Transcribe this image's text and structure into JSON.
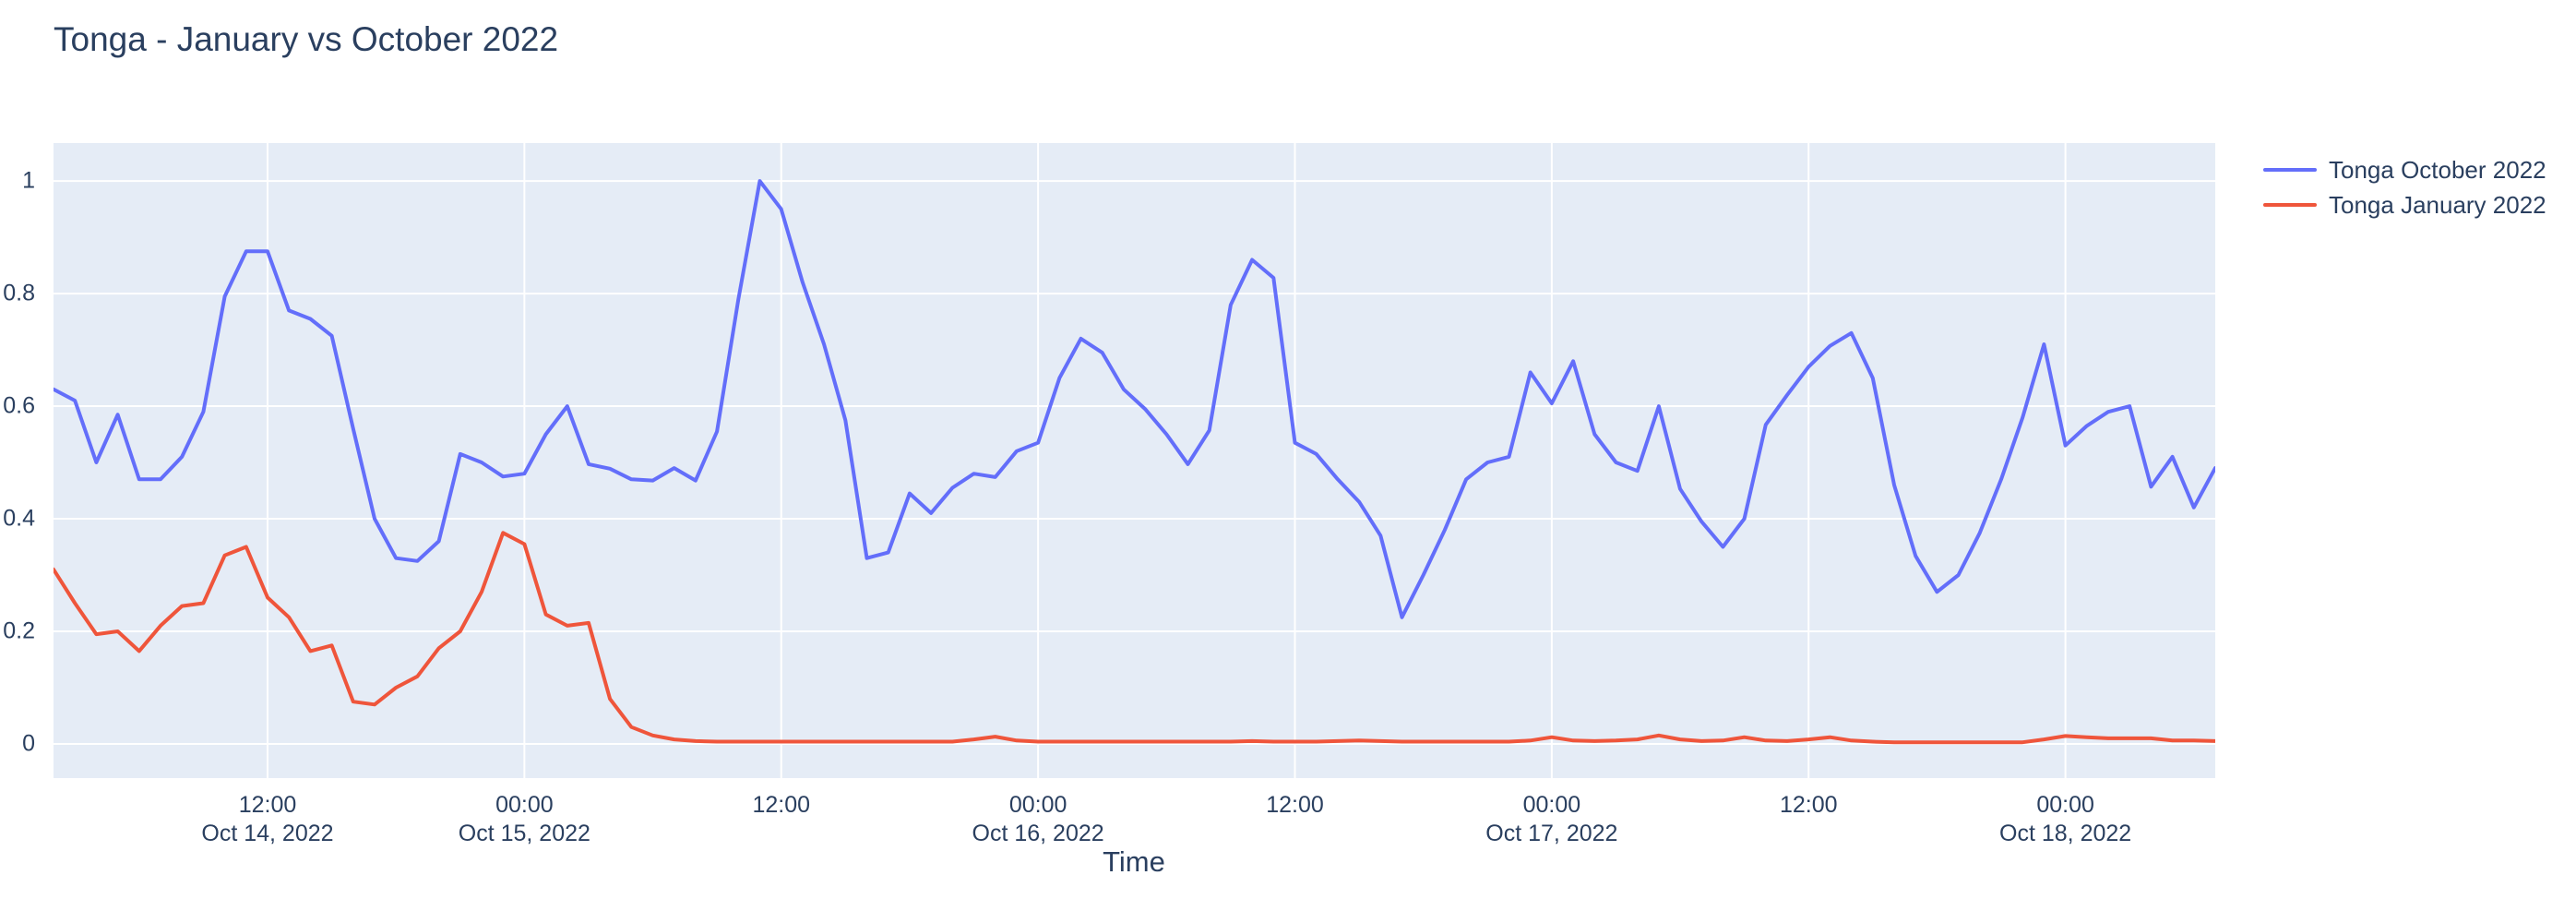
{
  "title": "Tonga - January vs October 2022",
  "xaxis": {
    "title": "Time",
    "ticks": [
      {
        "time": "12:00",
        "date": "Oct 14, 2022",
        "offset_h": 10
      },
      {
        "time": "00:00",
        "date": "Oct 15, 2022",
        "offset_h": 22
      },
      {
        "time": "12:00",
        "date": "",
        "offset_h": 34
      },
      {
        "time": "00:00",
        "date": "Oct 16, 2022",
        "offset_h": 46
      },
      {
        "time": "12:00",
        "date": "",
        "offset_h": 58
      },
      {
        "time": "00:00",
        "date": "Oct 17, 2022",
        "offset_h": 70
      },
      {
        "time": "12:00",
        "date": "",
        "offset_h": 82
      },
      {
        "time": "00:00",
        "date": "Oct 18, 2022",
        "offset_h": 94
      }
    ],
    "span_hours": 101
  },
  "yaxis": {
    "ticks": [
      {
        "label": "0",
        "value": 0
      },
      {
        "label": "0.2",
        "value": 0.2
      },
      {
        "label": "0.4",
        "value": 0.4
      },
      {
        "label": "0.6",
        "value": 0.6
      },
      {
        "label": "0.8",
        "value": 0.8
      },
      {
        "label": "1",
        "value": 1
      }
    ],
    "range": [
      -0.0607,
      1.0674
    ]
  },
  "legend": {
    "items": [
      {
        "label": "Tonga October 2022",
        "color": "#636efa"
      },
      {
        "label": "Tonga January 2022",
        "color": "#ef553b"
      }
    ]
  },
  "colors": {
    "plot_bg": "#e5ecf6",
    "grid": "#ffffff",
    "font": "#2a3f5f",
    "october_series": "#636efa",
    "january_series": "#ef553b"
  },
  "chart_data": {
    "type": "line",
    "title": "Tonga - January vs October 2022",
    "xlabel": "Time",
    "ylabel": "",
    "x_start": "2022-10-14 02:00",
    "x_step_hours": 1,
    "x_end": "2022-10-18 07:00",
    "ylim": [
      -0.0607,
      1.0674
    ],
    "grid": true,
    "legend_position": "right",
    "series": [
      {
        "name": "Tonga October 2022",
        "color": "#636efa",
        "values": [
          0.63,
          0.61,
          0.5,
          0.585,
          0.47,
          0.47,
          0.51,
          0.59,
          0.795,
          0.875,
          0.875,
          0.77,
          0.755,
          0.725,
          0.56,
          0.4,
          0.33,
          0.325,
          0.36,
          0.515,
          0.5,
          0.475,
          0.48,
          0.55,
          0.6,
          0.497,
          0.489,
          0.47,
          0.468,
          0.49,
          0.468,
          0.555,
          0.79,
          1.0,
          0.95,
          0.82,
          0.71,
          0.575,
          0.33,
          0.34,
          0.445,
          0.41,
          0.455,
          0.48,
          0.474,
          0.52,
          0.535,
          0.65,
          0.72,
          0.695,
          0.63,
          0.595,
          0.55,
          0.497,
          0.557,
          0.78,
          0.86,
          0.828,
          0.535,
          0.515,
          0.47,
          0.43,
          0.37,
          0.225,
          0.3,
          0.38,
          0.47,
          0.5,
          0.51,
          0.66,
          0.605,
          0.68,
          0.55,
          0.5,
          0.485,
          0.6,
          0.453,
          0.395,
          0.35,
          0.4,
          0.567,
          0.62,
          0.67,
          0.707,
          0.73,
          0.65,
          0.46,
          0.334,
          0.27,
          0.3,
          0.375,
          0.47,
          0.58,
          0.71,
          0.53,
          0.565,
          0.59,
          0.6,
          0.457,
          0.51,
          0.42,
          0.49
        ]
      },
      {
        "name": "Tonga January 2022",
        "color": "#ef553b",
        "values": [
          0.31,
          0.25,
          0.195,
          0.2,
          0.165,
          0.21,
          0.245,
          0.25,
          0.335,
          0.35,
          0.26,
          0.225,
          0.165,
          0.175,
          0.075,
          0.07,
          0.1,
          0.12,
          0.17,
          0.2,
          0.27,
          0.375,
          0.355,
          0.23,
          0.21,
          0.215,
          0.08,
          0.03,
          0.015,
          0.008,
          0.005,
          0.004,
          0.004,
          0.004,
          0.004,
          0.004,
          0.004,
          0.004,
          0.004,
          0.004,
          0.004,
          0.004,
          0.004,
          0.008,
          0.013,
          0.006,
          0.004,
          0.004,
          0.004,
          0.004,
          0.004,
          0.004,
          0.004,
          0.004,
          0.004,
          0.004,
          0.005,
          0.004,
          0.004,
          0.004,
          0.005,
          0.006,
          0.005,
          0.004,
          0.004,
          0.004,
          0.004,
          0.004,
          0.004,
          0.006,
          0.012,
          0.006,
          0.005,
          0.006,
          0.008,
          0.015,
          0.008,
          0.005,
          0.006,
          0.012,
          0.006,
          0.005,
          0.008,
          0.012,
          0.006,
          0.004,
          0.003,
          0.003,
          0.003,
          0.003,
          0.003,
          0.003,
          0.003,
          0.008,
          0.014,
          0.012,
          0.01,
          0.01,
          0.01,
          0.006,
          0.006,
          0.005
        ]
      }
    ]
  }
}
